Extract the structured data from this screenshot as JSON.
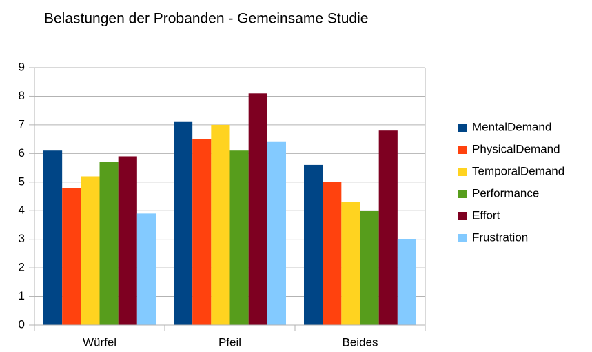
{
  "chart_data": {
    "type": "bar",
    "title": "Belastungen der Probanden - Gemeinsame Studie",
    "categories": [
      "Würfel",
      "Pfeil",
      "Beides"
    ],
    "series": [
      {
        "name": "MentalDemand",
        "color": "#004586",
        "values": [
          6.1,
          7.1,
          5.6
        ]
      },
      {
        "name": "PhysicalDemand",
        "color": "#ff420e",
        "values": [
          4.8,
          6.5,
          5.0
        ]
      },
      {
        "name": "TemporalDemand",
        "color": "#ffd320",
        "values": [
          5.2,
          7.0,
          4.3
        ]
      },
      {
        "name": "Performance",
        "color": "#579d1c",
        "values": [
          5.7,
          6.1,
          4.0
        ]
      },
      {
        "name": "Effort",
        "color": "#7e0021",
        "values": [
          5.9,
          8.1,
          6.8
        ]
      },
      {
        "name": "Frustration",
        "color": "#83caff",
        "values": [
          3.9,
          6.4,
          3.0
        ]
      }
    ],
    "ylim": [
      0,
      9
    ],
    "yticks": [
      0,
      1,
      2,
      3,
      4,
      5,
      6,
      7,
      8,
      9
    ],
    "grid": true,
    "legend": "right"
  }
}
